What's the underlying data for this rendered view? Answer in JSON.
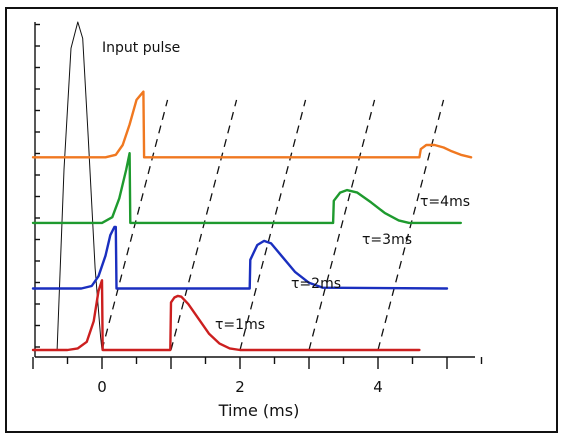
{
  "chart_data": {
    "type": "line",
    "xlabel": "Time (ms)",
    "ylabel": "",
    "xlim": [
      -1,
      5.5
    ],
    "x_ticks": [
      0,
      2,
      4
    ],
    "input_pulse": {
      "label": "Input pulse",
      "color": "#111111",
      "x": [
        -0.65,
        -0.55,
        -0.45,
        -0.35,
        -0.28,
        -0.2,
        -0.1,
        -0.02,
        0.0
      ],
      "y": [
        0.0,
        0.55,
        0.92,
        1.0,
        0.95,
        0.65,
        0.25,
        0.04,
        0.0
      ]
    },
    "series": [
      {
        "name": "τ=1ms",
        "color": "#cc1f1f",
        "baseline": 0.0,
        "x": [
          -1.0,
          -0.5,
          -0.35,
          -0.22,
          -0.12,
          -0.05,
          0.0,
          0.01,
          0.3,
          0.6,
          0.99,
          1.0,
          1.05,
          1.1,
          1.15,
          1.25,
          1.4,
          1.55,
          1.7,
          1.85,
          2.0,
          4.6
        ],
        "y": [
          0.0,
          0.0,
          0.02,
          0.1,
          0.35,
          0.72,
          0.85,
          0.0,
          0.0,
          0.0,
          0.0,
          0.58,
          0.64,
          0.66,
          0.65,
          0.56,
          0.38,
          0.2,
          0.08,
          0.02,
          0.0,
          0.0
        ]
      },
      {
        "name": "τ=2ms",
        "color": "#1a2fbf",
        "baseline": 0.75,
        "x": [
          -1.0,
          -0.3,
          -0.15,
          -0.05,
          0.05,
          0.12,
          0.18,
          0.2,
          0.21,
          1.0,
          2.14,
          2.15,
          2.25,
          2.35,
          2.45,
          2.6,
          2.8,
          3.0,
          3.2,
          5.0
        ],
        "y": [
          0.75,
          0.75,
          0.78,
          0.9,
          1.15,
          1.4,
          1.5,
          1.5,
          0.75,
          0.75,
          0.75,
          1.1,
          1.28,
          1.33,
          1.3,
          1.15,
          0.95,
          0.82,
          0.76,
          0.75
        ]
      },
      {
        "name": "τ=3ms",
        "color": "#1e9a2e",
        "baseline": 1.55,
        "x": [
          -1.0,
          0.0,
          0.15,
          0.25,
          0.35,
          0.4,
          0.41,
          1.5,
          3.35,
          3.36,
          3.45,
          3.55,
          3.7,
          3.9,
          4.1,
          4.3,
          4.45,
          5.2
        ],
        "y": [
          1.55,
          1.55,
          1.62,
          1.85,
          2.2,
          2.4,
          1.55,
          1.55,
          1.55,
          1.82,
          1.92,
          1.95,
          1.92,
          1.8,
          1.67,
          1.58,
          1.55,
          1.55
        ]
      },
      {
        "name": "τ=4ms",
        "color": "#f07820",
        "baseline": 2.35,
        "x": [
          -1.0,
          0.05,
          0.2,
          0.3,
          0.4,
          0.5,
          0.55,
          0.6,
          0.61,
          1.8,
          4.6,
          4.62,
          4.7,
          4.82,
          4.95,
          5.05,
          5.2,
          5.35
        ],
        "y": [
          2.35,
          2.35,
          2.38,
          2.5,
          2.75,
          3.05,
          3.1,
          3.15,
          2.35,
          2.35,
          2.35,
          2.45,
          2.5,
          2.5,
          2.47,
          2.43,
          2.38,
          2.35
        ]
      }
    ],
    "dashed_guides": [
      {
        "x0": 0.0,
        "y0": 0.0,
        "x1": 0.95,
        "y1": 3.05
      },
      {
        "x0": 1.0,
        "y0": 0.0,
        "x1": 1.95,
        "y1": 3.05
      },
      {
        "x0": 2.0,
        "y0": 0.0,
        "x1": 2.95,
        "y1": 3.05
      },
      {
        "x0": 3.0,
        "y0": 0.0,
        "x1": 3.95,
        "y1": 3.05
      },
      {
        "x0": 4.0,
        "y0": 0.0,
        "x1": 4.95,
        "y1": 3.05
      }
    ]
  }
}
